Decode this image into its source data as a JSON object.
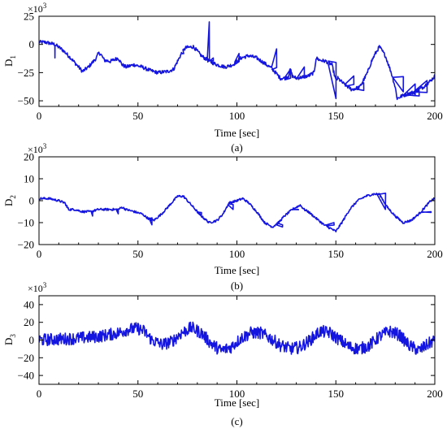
{
  "chart_data": [
    {
      "type": "line",
      "caption": "(a)",
      "ylabel": "D",
      "ylabel_sub": "1",
      "xlabel": "Time [sec]",
      "multiplier_label": "×10",
      "multiplier_exp": "3",
      "xlim": [
        0,
        200
      ],
      "ylim": [
        -55,
        25
      ],
      "xticks": [
        0,
        50,
        100,
        150,
        200
      ],
      "yticks": [
        25,
        0,
        -25,
        -50
      ],
      "color": "#1515e0",
      "grid": false,
      "legend": "none",
      "noise": 1.6,
      "x": [
        0,
        3,
        8,
        12,
        16,
        20,
        22,
        25,
        29,
        30,
        31,
        33,
        36,
        40,
        42,
        44,
        48,
        52,
        56,
        60,
        65,
        68,
        70,
        72,
        74,
        78,
        80,
        82,
        86,
        90,
        94,
        98,
        102,
        106,
        110,
        115,
        118,
        120,
        122,
        124,
        126,
        127,
        128,
        130,
        133,
        136,
        139,
        140,
        142,
        145,
        148,
        150,
        151,
        154,
        158,
        162,
        166,
        168,
        170,
        172,
        175,
        178,
        180,
        181,
        183,
        186,
        190,
        194,
        198,
        200
      ],
      "y": [
        2,
        2,
        0,
        -5,
        -12,
        -20,
        -24,
        -20,
        -12,
        -8,
        -8,
        -14,
        -15,
        -12,
        -18,
        -20,
        -18,
        -20,
        -23,
        -25,
        -24,
        -22,
        -15,
        -8,
        -3,
        -2,
        -6,
        -10,
        -15,
        -18,
        -20,
        -18,
        -12,
        -10,
        -12,
        -18,
        -22,
        -26,
        -30,
        -30,
        -28,
        -22,
        -28,
        -30,
        -29,
        -28,
        -25,
        -12,
        -14,
        -15,
        -18,
        -32,
        -30,
        -35,
        -40,
        -38,
        -25,
        -15,
        -8,
        -2,
        -10,
        -25,
        -38,
        -48,
        -46,
        -44,
        -42,
        -38,
        -32,
        -28
      ],
      "spikes": [
        [
          8,
          -12
        ],
        [
          73,
          -8
        ],
        [
          86,
          20
        ],
        [
          88,
          -12
        ],
        [
          101,
          -8
        ],
        [
          120,
          -4
        ],
        [
          127,
          -22
        ],
        [
          134,
          -20
        ],
        [
          150,
          -48
        ],
        [
          159,
          -28
        ],
        [
          164,
          -34
        ],
        [
          184,
          -42
        ],
        [
          190,
          -35
        ],
        [
          192,
          -40
        ],
        [
          196,
          -32
        ]
      ]
    },
    {
      "type": "line",
      "caption": "(b)",
      "ylabel": "D",
      "ylabel_sub": "2",
      "xlabel": "Time [sec]",
      "multiplier_label": "×10",
      "multiplier_exp": "3",
      "xlim": [
        0,
        200
      ],
      "ylim": [
        -20,
        20
      ],
      "xticks": [
        0,
        50,
        100,
        150,
        200
      ],
      "yticks": [
        20,
        10,
        0,
        -10,
        -20
      ],
      "color": "#1515e0",
      "grid": false,
      "legend": "none",
      "noise": 0.5,
      "x": [
        0,
        5,
        10,
        13,
        15,
        18,
        22,
        26,
        30,
        35,
        38,
        40,
        42,
        44,
        48,
        52,
        55,
        58,
        62,
        66,
        70,
        73,
        76,
        79,
        82,
        86,
        90,
        93,
        96,
        100,
        103,
        106,
        110,
        114,
        118,
        121,
        124,
        128,
        132,
        134,
        136,
        140,
        144,
        148,
        150,
        153,
        157,
        161,
        165,
        169,
        172,
        176,
        180,
        184,
        188,
        192,
        195,
        198,
        200
      ],
      "y": [
        1,
        1,
        0,
        -1,
        -4,
        -4,
        -5,
        -5,
        -4,
        -4,
        -4,
        -4,
        -3,
        -4,
        -5,
        -6,
        -8,
        -9,
        -6,
        -2,
        2,
        2,
        -1,
        -4,
        -7,
        -10,
        -9,
        -6,
        -1,
        0,
        1,
        -1,
        -5,
        -10,
        -12,
        -10,
        -7,
        -4,
        -2,
        -4,
        -5,
        -8,
        -11,
        -13,
        -14,
        -10,
        -4,
        0,
        2,
        3,
        3,
        -3,
        -7,
        -10,
        -9,
        -6,
        -3,
        0,
        1
      ],
      "spikes": [
        [
          14,
          -3
        ],
        [
          27,
          -7
        ],
        [
          40,
          -6
        ],
        [
          57,
          -11
        ],
        [
          82,
          -7
        ],
        [
          98,
          -4
        ],
        [
          123,
          -12
        ],
        [
          131,
          -4
        ],
        [
          149,
          -10
        ],
        [
          175,
          -4
        ],
        [
          198,
          -5
        ]
      ]
    },
    {
      "type": "line",
      "caption": "(c)",
      "ylabel": "D",
      "ylabel_sub": "3",
      "xlabel": "Time [sec]",
      "multiplier_label": "×10",
      "multiplier_exp": "3",
      "xlim": [
        0,
        200
      ],
      "ylim": [
        -50,
        50
      ],
      "xticks": [
        0,
        50,
        100,
        150,
        200
      ],
      "yticks": [
        40,
        20,
        0,
        -20,
        -40
      ],
      "color": "#1515e0",
      "grid": false,
      "legend": "none",
      "noise": 7,
      "x": [
        0,
        10,
        20,
        30,
        40,
        45,
        50,
        53,
        57,
        62,
        67,
        72,
        77,
        82,
        87,
        92,
        97,
        102,
        107,
        112,
        117,
        122,
        127,
        132,
        137,
        142,
        147,
        152,
        157,
        162,
        167,
        172,
        177,
        182,
        187,
        192,
        197,
        200
      ],
      "y": [
        0,
        1,
        2,
        4,
        8,
        12,
        13,
        10,
        0,
        -5,
        -2,
        8,
        14,
        8,
        -4,
        -12,
        -8,
        2,
        8,
        8,
        2,
        -6,
        -10,
        -8,
        0,
        10,
        8,
        0,
        -8,
        -10,
        -6,
        4,
        10,
        6,
        -6,
        -12,
        -4,
        0
      ],
      "spikes": []
    }
  ]
}
